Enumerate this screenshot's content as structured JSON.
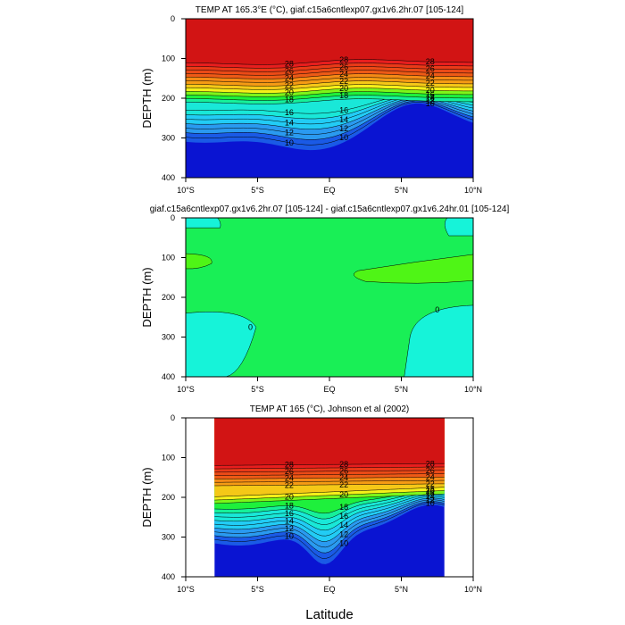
{
  "chart_data": [
    {
      "type": "contour",
      "title": "TEMP AT 165.3°E (°C), giaf.c15a6cntlexp07.gx1v6.2hr.07 [105-124]",
      "xlabel": "",
      "ylabel": "DEPTH (m)",
      "xlim": [
        -10,
        10
      ],
      "ylim": [
        400,
        0
      ],
      "x_ticks": [
        "10°S",
        "5°S",
        "EQ",
        "5°N",
        "10°N"
      ],
      "y_ticks": [
        "0",
        "100",
        "200",
        "300",
        "400"
      ],
      "contour_interval": 1,
      "contour_labels": [
        "28",
        "26",
        "24",
        "22",
        "20",
        "18",
        "16",
        "14",
        "12",
        "10"
      ],
      "data_extent": [
        -10,
        10
      ]
    },
    {
      "type": "contour",
      "title": "giaf.c15a6cntlexp07.gx1v6.2hr.07 [105-124] - giaf.c15a6cntlexp07.gx1v6.24hr.01 [105-124]",
      "xlabel": "",
      "ylabel": "DEPTH (m)",
      "xlim": [
        -10,
        10
      ],
      "ylim": [
        400,
        0
      ],
      "x_ticks": [
        "10°S",
        "5°S",
        "EQ",
        "5°N",
        "10°N"
      ],
      "y_ticks": [
        "0",
        "100",
        "200",
        "300",
        "400"
      ],
      "contour_labels": [
        "0",
        "0"
      ],
      "data_extent": [
        -10,
        10
      ]
    },
    {
      "type": "contour",
      "title": "TEMP AT 165 (°C), Johnson et al (2002)",
      "xlabel": "Latitude",
      "ylabel": "DEPTH (m)",
      "xlim": [
        -10,
        10
      ],
      "ylim": [
        400,
        0
      ],
      "x_ticks": [
        "10°S",
        "5°S",
        "EQ",
        "5°N",
        "10°N"
      ],
      "y_ticks": [
        "0",
        "100",
        "200",
        "300",
        "400"
      ],
      "contour_interval": 1,
      "contour_labels": [
        "28",
        "26",
        "24",
        "22",
        "20",
        "18",
        "16",
        "14",
        "12",
        "10"
      ],
      "data_extent": [
        -8,
        8
      ]
    }
  ],
  "palette": {
    "cold_deep": "#0a14d2",
    "blue": "#1a5ae6",
    "mid_blue": "#2a9af0",
    "cyan": "#22ccf5",
    "aqua": "#19e8d8",
    "green_aqua": "#16f09a",
    "green": "#1ef03c",
    "lime": "#7df519",
    "yellow": "#f5f019",
    "orange": "#f59b14",
    "red_orange": "#ee5a16",
    "red": "#e81e1e",
    "dark_red": "#d21414",
    "diff_zero": "#19ef56",
    "diff_neg": "#16f3d9",
    "diff_pos": "#4ff516"
  }
}
